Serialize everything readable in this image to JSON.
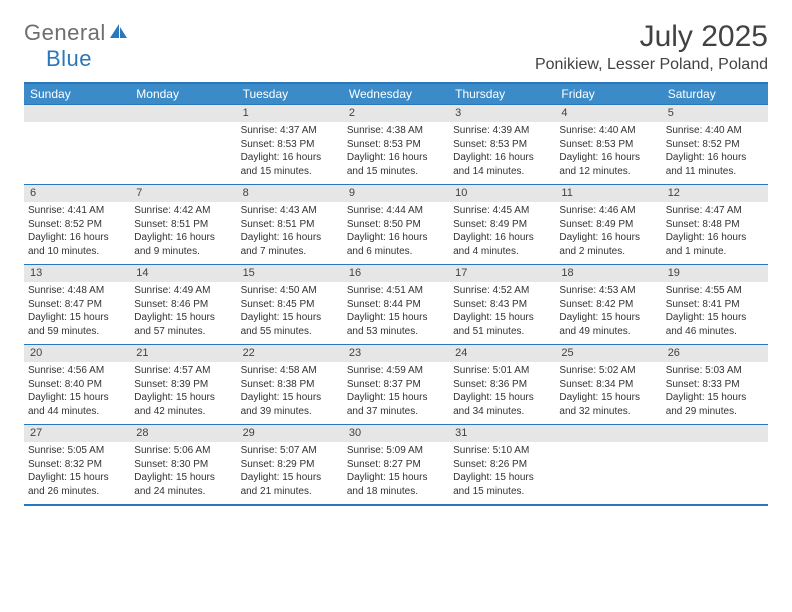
{
  "logo": {
    "part1": "General",
    "part2": "Blue"
  },
  "title": "July 2025",
  "location": "Ponikiew, Lesser Poland, Poland",
  "colors": {
    "brand_blue": "#2a77bb",
    "header_blue": "#3b8bc9",
    "grey_text": "#6e6e6e",
    "title_text": "#424242",
    "daynum_bg": "#e6e6e6",
    "body_text": "#333333",
    "bg": "#ffffff"
  },
  "dayheads": [
    "Sunday",
    "Monday",
    "Tuesday",
    "Wednesday",
    "Thursday",
    "Friday",
    "Saturday"
  ],
  "weeks": [
    [
      {
        "num": "",
        "sunrise": "",
        "sunset": "",
        "daylight": ""
      },
      {
        "num": "",
        "sunrise": "",
        "sunset": "",
        "daylight": ""
      },
      {
        "num": "1",
        "sunrise": "Sunrise: 4:37 AM",
        "sunset": "Sunset: 8:53 PM",
        "daylight": "Daylight: 16 hours and 15 minutes."
      },
      {
        "num": "2",
        "sunrise": "Sunrise: 4:38 AM",
        "sunset": "Sunset: 8:53 PM",
        "daylight": "Daylight: 16 hours and 15 minutes."
      },
      {
        "num": "3",
        "sunrise": "Sunrise: 4:39 AM",
        "sunset": "Sunset: 8:53 PM",
        "daylight": "Daylight: 16 hours and 14 minutes."
      },
      {
        "num": "4",
        "sunrise": "Sunrise: 4:40 AM",
        "sunset": "Sunset: 8:53 PM",
        "daylight": "Daylight: 16 hours and 12 minutes."
      },
      {
        "num": "5",
        "sunrise": "Sunrise: 4:40 AM",
        "sunset": "Sunset: 8:52 PM",
        "daylight": "Daylight: 16 hours and 11 minutes."
      }
    ],
    [
      {
        "num": "6",
        "sunrise": "Sunrise: 4:41 AM",
        "sunset": "Sunset: 8:52 PM",
        "daylight": "Daylight: 16 hours and 10 minutes."
      },
      {
        "num": "7",
        "sunrise": "Sunrise: 4:42 AM",
        "sunset": "Sunset: 8:51 PM",
        "daylight": "Daylight: 16 hours and 9 minutes."
      },
      {
        "num": "8",
        "sunrise": "Sunrise: 4:43 AM",
        "sunset": "Sunset: 8:51 PM",
        "daylight": "Daylight: 16 hours and 7 minutes."
      },
      {
        "num": "9",
        "sunrise": "Sunrise: 4:44 AM",
        "sunset": "Sunset: 8:50 PM",
        "daylight": "Daylight: 16 hours and 6 minutes."
      },
      {
        "num": "10",
        "sunrise": "Sunrise: 4:45 AM",
        "sunset": "Sunset: 8:49 PM",
        "daylight": "Daylight: 16 hours and 4 minutes."
      },
      {
        "num": "11",
        "sunrise": "Sunrise: 4:46 AM",
        "sunset": "Sunset: 8:49 PM",
        "daylight": "Daylight: 16 hours and 2 minutes."
      },
      {
        "num": "12",
        "sunrise": "Sunrise: 4:47 AM",
        "sunset": "Sunset: 8:48 PM",
        "daylight": "Daylight: 16 hours and 1 minute."
      }
    ],
    [
      {
        "num": "13",
        "sunrise": "Sunrise: 4:48 AM",
        "sunset": "Sunset: 8:47 PM",
        "daylight": "Daylight: 15 hours and 59 minutes."
      },
      {
        "num": "14",
        "sunrise": "Sunrise: 4:49 AM",
        "sunset": "Sunset: 8:46 PM",
        "daylight": "Daylight: 15 hours and 57 minutes."
      },
      {
        "num": "15",
        "sunrise": "Sunrise: 4:50 AM",
        "sunset": "Sunset: 8:45 PM",
        "daylight": "Daylight: 15 hours and 55 minutes."
      },
      {
        "num": "16",
        "sunrise": "Sunrise: 4:51 AM",
        "sunset": "Sunset: 8:44 PM",
        "daylight": "Daylight: 15 hours and 53 minutes."
      },
      {
        "num": "17",
        "sunrise": "Sunrise: 4:52 AM",
        "sunset": "Sunset: 8:43 PM",
        "daylight": "Daylight: 15 hours and 51 minutes."
      },
      {
        "num": "18",
        "sunrise": "Sunrise: 4:53 AM",
        "sunset": "Sunset: 8:42 PM",
        "daylight": "Daylight: 15 hours and 49 minutes."
      },
      {
        "num": "19",
        "sunrise": "Sunrise: 4:55 AM",
        "sunset": "Sunset: 8:41 PM",
        "daylight": "Daylight: 15 hours and 46 minutes."
      }
    ],
    [
      {
        "num": "20",
        "sunrise": "Sunrise: 4:56 AM",
        "sunset": "Sunset: 8:40 PM",
        "daylight": "Daylight: 15 hours and 44 minutes."
      },
      {
        "num": "21",
        "sunrise": "Sunrise: 4:57 AM",
        "sunset": "Sunset: 8:39 PM",
        "daylight": "Daylight: 15 hours and 42 minutes."
      },
      {
        "num": "22",
        "sunrise": "Sunrise: 4:58 AM",
        "sunset": "Sunset: 8:38 PM",
        "daylight": "Daylight: 15 hours and 39 minutes."
      },
      {
        "num": "23",
        "sunrise": "Sunrise: 4:59 AM",
        "sunset": "Sunset: 8:37 PM",
        "daylight": "Daylight: 15 hours and 37 minutes."
      },
      {
        "num": "24",
        "sunrise": "Sunrise: 5:01 AM",
        "sunset": "Sunset: 8:36 PM",
        "daylight": "Daylight: 15 hours and 34 minutes."
      },
      {
        "num": "25",
        "sunrise": "Sunrise: 5:02 AM",
        "sunset": "Sunset: 8:34 PM",
        "daylight": "Daylight: 15 hours and 32 minutes."
      },
      {
        "num": "26",
        "sunrise": "Sunrise: 5:03 AM",
        "sunset": "Sunset: 8:33 PM",
        "daylight": "Daylight: 15 hours and 29 minutes."
      }
    ],
    [
      {
        "num": "27",
        "sunrise": "Sunrise: 5:05 AM",
        "sunset": "Sunset: 8:32 PM",
        "daylight": "Daylight: 15 hours and 26 minutes."
      },
      {
        "num": "28",
        "sunrise": "Sunrise: 5:06 AM",
        "sunset": "Sunset: 8:30 PM",
        "daylight": "Daylight: 15 hours and 24 minutes."
      },
      {
        "num": "29",
        "sunrise": "Sunrise: 5:07 AM",
        "sunset": "Sunset: 8:29 PM",
        "daylight": "Daylight: 15 hours and 21 minutes."
      },
      {
        "num": "30",
        "sunrise": "Sunrise: 5:09 AM",
        "sunset": "Sunset: 8:27 PM",
        "daylight": "Daylight: 15 hours and 18 minutes."
      },
      {
        "num": "31",
        "sunrise": "Sunrise: 5:10 AM",
        "sunset": "Sunset: 8:26 PM",
        "daylight": "Daylight: 15 hours and 15 minutes."
      },
      {
        "num": "",
        "sunrise": "",
        "sunset": "",
        "daylight": ""
      },
      {
        "num": "",
        "sunrise": "",
        "sunset": "",
        "daylight": ""
      }
    ]
  ]
}
